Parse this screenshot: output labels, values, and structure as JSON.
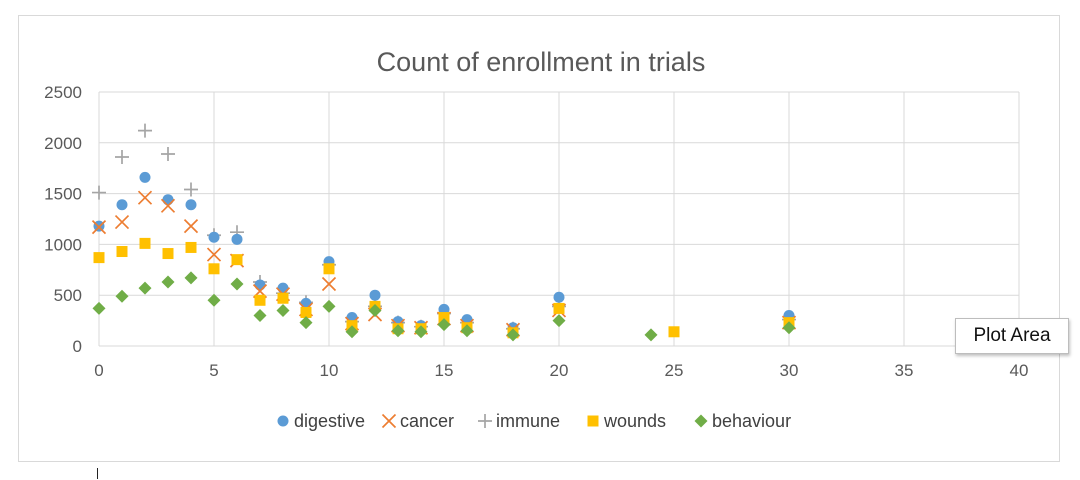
{
  "chart_data": {
    "type": "scatter",
    "title": "Count of enrollment in trials",
    "xlabel": "",
    "ylabel": "",
    "xlim": [
      0,
      40
    ],
    "ylim": [
      0,
      2500
    ],
    "x_ticks": [
      0,
      5,
      10,
      15,
      20,
      25,
      30,
      35,
      40
    ],
    "y_ticks": [
      0,
      500,
      1000,
      1500,
      2000,
      2500
    ],
    "grid": true,
    "legend_position": "bottom",
    "series": [
      {
        "name": "digestive",
        "marker": "circle",
        "color": "#5b9bd5",
        "points": [
          [
            0,
            1180
          ],
          [
            1,
            1390
          ],
          [
            2,
            1660
          ],
          [
            3,
            1440
          ],
          [
            4,
            1390
          ],
          [
            5,
            1070
          ],
          [
            6,
            1050
          ],
          [
            7,
            600
          ],
          [
            8,
            570
          ],
          [
            9,
            420
          ],
          [
            10,
            830
          ],
          [
            11,
            280
          ],
          [
            12,
            500
          ],
          [
            13,
            240
          ],
          [
            14,
            200
          ],
          [
            15,
            360
          ],
          [
            16,
            260
          ],
          [
            18,
            180
          ],
          [
            20,
            480
          ],
          [
            30,
            300
          ]
        ]
      },
      {
        "name": "cancer",
        "marker": "x",
        "color": "#ed7d31",
        "points": [
          [
            0,
            1170
          ],
          [
            1,
            1220
          ],
          [
            2,
            1460
          ],
          [
            3,
            1380
          ],
          [
            4,
            1180
          ],
          [
            5,
            900
          ],
          [
            6,
            840
          ],
          [
            7,
            540
          ],
          [
            8,
            510
          ],
          [
            9,
            360
          ],
          [
            10,
            610
          ],
          [
            11,
            220
          ],
          [
            12,
            310
          ],
          [
            13,
            200
          ],
          [
            14,
            180
          ],
          [
            15,
            270
          ],
          [
            16,
            200
          ],
          [
            18,
            160
          ],
          [
            20,
            350
          ],
          [
            30,
            230
          ]
        ]
      },
      {
        "name": "immune",
        "marker": "plus",
        "color": "#a5a5a5",
        "points": [
          [
            0,
            1510
          ],
          [
            1,
            1860
          ],
          [
            2,
            2120
          ],
          [
            3,
            1890
          ],
          [
            4,
            1540
          ],
          [
            5,
            1090
          ],
          [
            6,
            1120
          ],
          [
            7,
            630
          ],
          [
            8,
            520
          ],
          [
            9,
            430
          ],
          [
            10,
            800
          ],
          [
            11,
            240
          ],
          [
            12,
            390
          ],
          [
            13,
            230
          ],
          [
            14,
            190
          ],
          [
            15,
            320
          ],
          [
            16,
            230
          ],
          [
            18,
            170
          ],
          [
            20,
            390
          ],
          [
            30,
            260
          ]
        ]
      },
      {
        "name": "wounds",
        "marker": "square",
        "color": "#ffc000",
        "points": [
          [
            0,
            870
          ],
          [
            1,
            930
          ],
          [
            2,
            1010
          ],
          [
            3,
            910
          ],
          [
            4,
            970
          ],
          [
            5,
            760
          ],
          [
            6,
            850
          ],
          [
            7,
            450
          ],
          [
            8,
            470
          ],
          [
            9,
            330
          ],
          [
            10,
            760
          ],
          [
            11,
            200
          ],
          [
            12,
            390
          ],
          [
            13,
            170
          ],
          [
            14,
            170
          ],
          [
            15,
            280
          ],
          [
            16,
            180
          ],
          [
            18,
            130
          ],
          [
            20,
            370
          ],
          [
            25,
            140
          ],
          [
            30,
            230
          ]
        ]
      },
      {
        "name": "behaviour",
        "marker": "diamond",
        "color": "#70ad47",
        "points": [
          [
            0,
            370
          ],
          [
            1,
            490
          ],
          [
            2,
            570
          ],
          [
            3,
            630
          ],
          [
            4,
            670
          ],
          [
            5,
            450
          ],
          [
            6,
            610
          ],
          [
            7,
            300
          ],
          [
            8,
            350
          ],
          [
            9,
            230
          ],
          [
            10,
            390
          ],
          [
            11,
            140
          ],
          [
            12,
            350
          ],
          [
            13,
            150
          ],
          [
            14,
            140
          ],
          [
            15,
            210
          ],
          [
            16,
            150
          ],
          [
            18,
            110
          ],
          [
            20,
            250
          ],
          [
            24,
            110
          ],
          [
            30,
            180
          ]
        ]
      }
    ]
  },
  "ui": {
    "tooltip": "Plot Area"
  }
}
